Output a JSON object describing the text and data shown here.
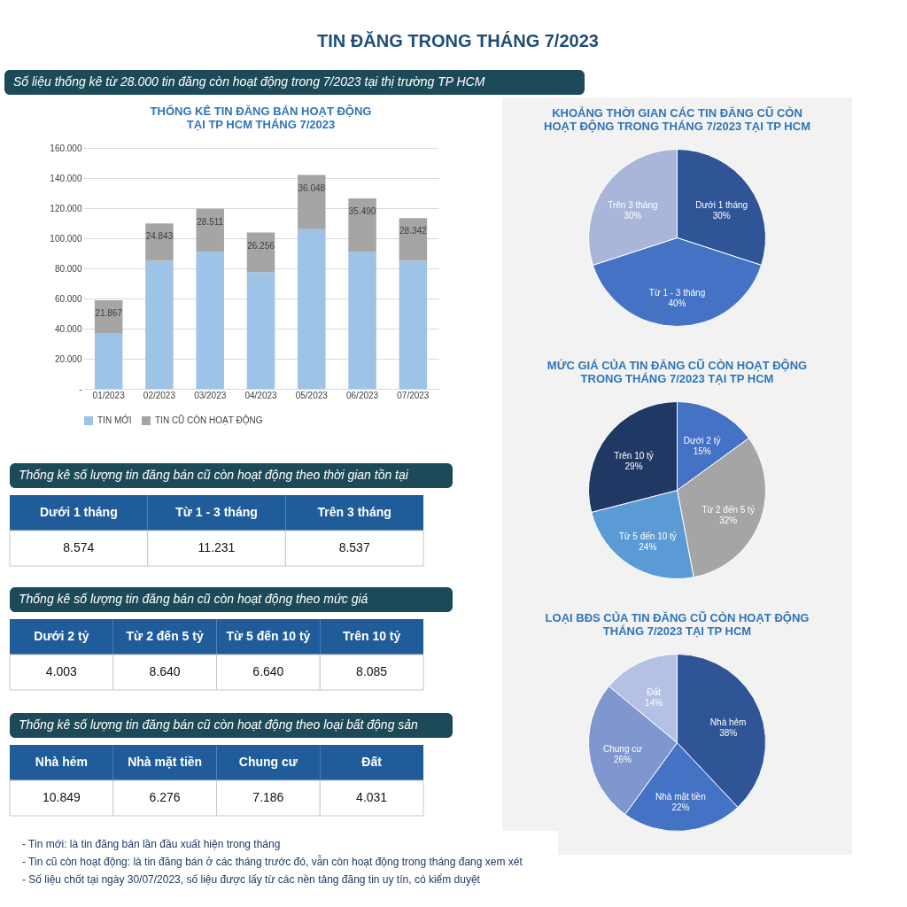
{
  "chart_data": [
    {
      "type": "other",
      "title": "TIN ĐĂNG TRONG THÁNG 7/2023",
      "subtitle": "Số liệu thống kê từ 28.000 tin đăng còn hoạt động trong 7/2023 tại thị trường TP HCM"
    },
    {
      "type": "bar",
      "title": "THỐNG KÊ TIN ĐĂNG BÁN HOẠT ĐỘNG\nTẠI TP HCM THÁNG 7/2023",
      "categories": [
        "01/2023",
        "02/2023",
        "03/2023",
        "04/2023",
        "05/2023",
        "06/2023",
        "07/2023"
      ],
      "stacked": true,
      "series": [
        {
          "name": "TIN MỚI",
          "color": "#9dc3e6",
          "values": [
            37000,
            85000,
            91000,
            77500,
            106000,
            91000,
            85000
          ]
        },
        {
          "name": "TIN CŨ CÒN HOẠT ĐỘNG",
          "color": "#a5a5a5",
          "values": [
            21867,
            24843,
            28511,
            26256,
            36048,
            35490,
            28342
          ],
          "value_labels": [
            "21.867",
            "24.843",
            "28.511",
            "26.256",
            "36.048",
            "35.490",
            "28.342"
          ]
        }
      ],
      "ylim": [
        0,
        160000
      ],
      "yticks": [
        {
          "value": 0,
          "label": "-"
        },
        {
          "value": 20000,
          "label": "20.000"
        },
        {
          "value": 40000,
          "label": "40.000"
        },
        {
          "value": 60000,
          "label": "60.000"
        },
        {
          "value": 80000,
          "label": "80.000"
        },
        {
          "value": 100000,
          "label": "100.000"
        },
        {
          "value": 120000,
          "label": "120.000"
        },
        {
          "value": 140000,
          "label": "140.000"
        },
        {
          "value": 160000,
          "label": "160.000"
        }
      ],
      "grid": "y",
      "legend": "bottom"
    },
    {
      "type": "pie",
      "title": "KHOẢNG THỜI GIAN CÁC TIN ĐĂNG CŨ CÒN\nHOẠT ĐỘNG TRONG THÁNG 7/2023 TẠI TP HCM",
      "categories": [
        "Dưới 1 tháng",
        "Từ 1 - 3 tháng",
        "Trên 3 tháng"
      ],
      "values": [
        30,
        40,
        30
      ],
      "value_labels": [
        "30%",
        "40%",
        "30%"
      ],
      "colors": [
        "#2f5597",
        "#4472c4",
        "#a9b6d9"
      ]
    },
    {
      "type": "pie",
      "title": "MỨC GIÁ CỦA TIN ĐĂNG CŨ CÒN HOẠT ĐỘNG\nTRONG THÁNG 7/2023 TẠI TP HCM",
      "categories": [
        "Dưới 2 tỷ",
        "Từ 2 đến 5 tỷ",
        "Từ 5 đến 10 tỷ",
        "Trên 10 tỷ"
      ],
      "values": [
        15,
        32,
        24,
        29
      ],
      "value_labels": [
        "15%",
        "32%",
        "24%",
        "29%"
      ],
      "colors": [
        "#4472c4",
        "#a5a5a5",
        "#5b9bd5",
        "#203864"
      ]
    },
    {
      "type": "pie",
      "title": "LOẠI BĐS CỦA TIN ĐĂNG CŨ CÒN HOẠT ĐỘNG\nTHÁNG 7/2023 TẠI TP HCM",
      "categories": [
        "Nhà hẻm",
        "Nhà mặt tiền",
        "Chung cư",
        "Đất"
      ],
      "values": [
        38,
        22,
        26,
        14
      ],
      "value_labels": [
        "38%",
        "22%",
        "26%",
        "14%"
      ],
      "colors": [
        "#2f5597",
        "#4472c4",
        "#7f96cf",
        "#b4c1e4"
      ]
    },
    {
      "type": "other",
      "title": "Thống kê số lượng tin đăng bán cũ còn hoạt động theo thời gian tồn tại",
      "categories": [
        "Dưới 1 tháng",
        "Từ 1 - 3 tháng",
        "Trên 3 tháng"
      ],
      "values": [
        8574,
        11231,
        8537
      ],
      "value_labels": [
        "8.574",
        "11.231",
        "8.537"
      ],
      "data_labels": true
    },
    {
      "type": "other",
      "title": "Thống kê số lượng tin đăng bán cũ còn hoạt động theo mức giá",
      "categories": [
        "Dưới 2 tỷ",
        "Từ 2 đến 5 tỷ",
        "Từ 5 đến 10 tỷ",
        "Trên 10 tỷ"
      ],
      "values": [
        4003,
        8640,
        6640,
        8085
      ],
      "value_labels": [
        "4.003",
        "8.640",
        "6.640",
        "8.085"
      ],
      "data_labels": true
    },
    {
      "type": "other",
      "title": "Thống kê số lượng tin đăng bán cũ còn hoạt động theo loại bất động sản",
      "categories": [
        "Nhà hẻm",
        "Nhà mặt tiền",
        "Chung cư",
        "Đất"
      ],
      "values": [
        10849,
        6276,
        7186,
        4031
      ],
      "value_labels": [
        "10.849",
        "6.276",
        "7.186",
        "4.031"
      ],
      "data_labels": true
    },
    {
      "type": "other",
      "annotations": [
        "- Tin mới: là tin đăng bán lần đầu xuất hiện trong tháng",
        "- Tin cũ còn hoạt động: là tin đăng bán ở các tháng trước đó, vẫn còn hoạt động trong tháng đang xem xét",
        "- Số liệu chốt tại ngày 30/07/2023, số liệu được lấy từ các nền tảng đăng tin uy tín, có kiểm duyệt"
      ]
    }
  ]
}
